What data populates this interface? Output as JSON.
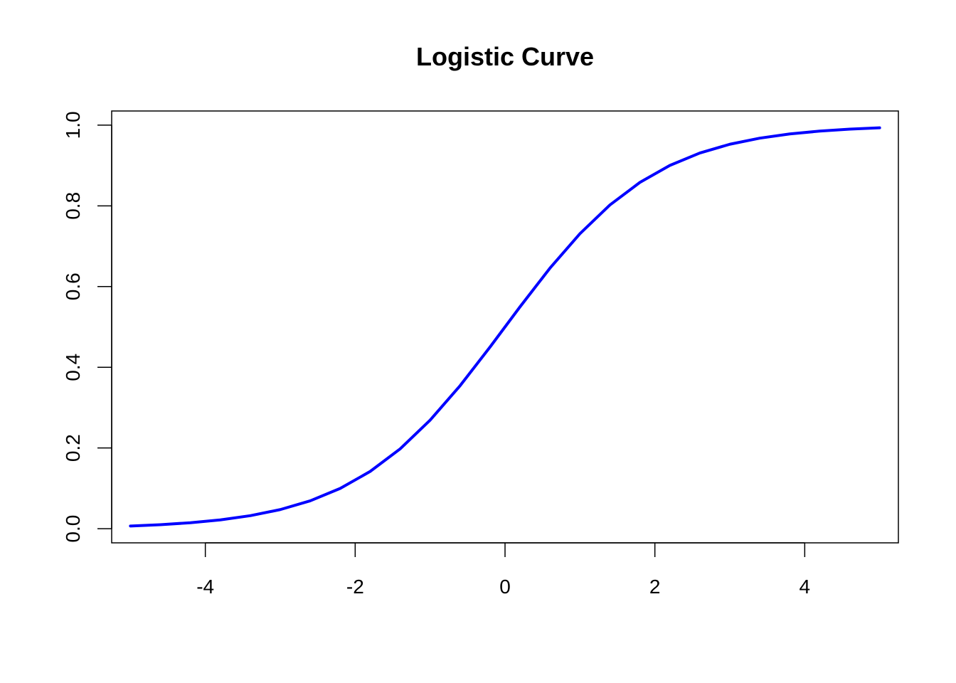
{
  "chart_data": {
    "type": "line",
    "title": "Logistic Curve",
    "xlabel": "",
    "ylabel": "",
    "xlim": [
      -5.25,
      5.25
    ],
    "ylim": [
      -0.035,
      1.035
    ],
    "x_ticks": [
      -4,
      -2,
      0,
      2,
      4
    ],
    "x_tick_labels": [
      "-4",
      "-2",
      "0",
      "2",
      "4"
    ],
    "y_ticks": [
      0.0,
      0.2,
      0.4,
      0.6,
      0.8,
      1.0
    ],
    "y_tick_labels": [
      "0.0",
      "0.2",
      "0.4",
      "0.6",
      "0.8",
      "1.0"
    ],
    "grid": false,
    "series": [
      {
        "color": "#0000ff",
        "x": [
          -5,
          -4.6,
          -4.2,
          -3.8,
          -3.4,
          -3.0,
          -2.6,
          -2.2,
          -1.8,
          -1.4,
          -1.0,
          -0.6,
          -0.2,
          0.2,
          0.6,
          1.0,
          1.4,
          1.8,
          2.2,
          2.6,
          3.0,
          3.4,
          3.8,
          4.2,
          4.6,
          5.0
        ],
        "values": [
          0.0067,
          0.01,
          0.0148,
          0.0219,
          0.0323,
          0.0474,
          0.0691,
          0.0998,
          0.1419,
          0.1978,
          0.2689,
          0.3543,
          0.4502,
          0.5498,
          0.6457,
          0.7311,
          0.8022,
          0.8581,
          0.9002,
          0.9309,
          0.9526,
          0.9677,
          0.9781,
          0.9852,
          0.99,
          0.9933
        ]
      }
    ]
  }
}
